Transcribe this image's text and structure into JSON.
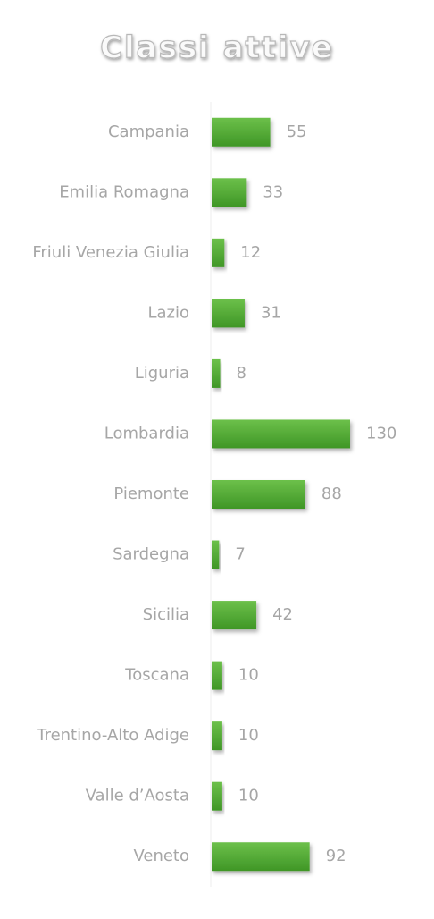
{
  "chart_data": {
    "type": "bar",
    "orientation": "horizontal",
    "title": "Classi attive",
    "categories": [
      "Campania",
      "Emilia Romagna",
      "Friuli Venezia Giulia",
      "Lazio",
      "Liguria",
      "Lombardia",
      "Piemonte",
      "Sardegna",
      "Sicilia",
      "Toscana",
      "Trentino-Alto Adige",
      "Valle d’Aosta",
      "Veneto"
    ],
    "values": [
      55,
      33,
      12,
      31,
      8,
      130,
      88,
      7,
      42,
      10,
      10,
      10,
      92
    ],
    "color": "#4ea72e"
  }
}
